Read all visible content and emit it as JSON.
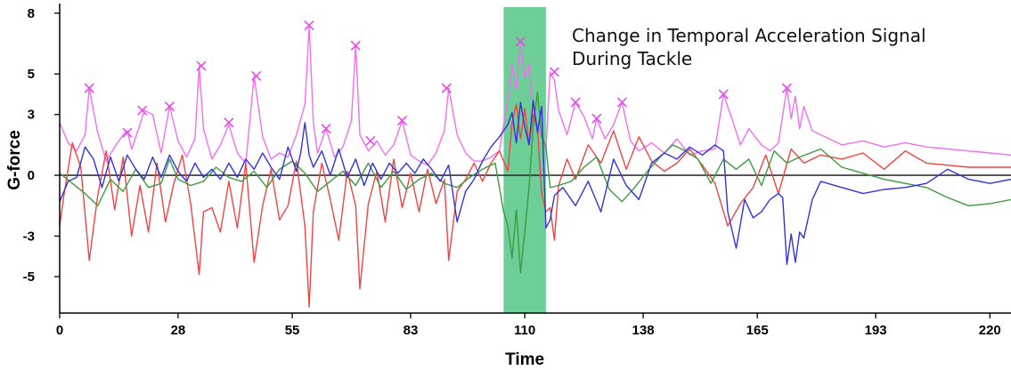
{
  "chart_data": {
    "type": "line",
    "title": "",
    "annotation": [
      "Change in Temporal Acceleration Signal",
      "During Tackle"
    ],
    "xlabel": "Time",
    "ylabel": "G-force",
    "xlim": [
      0,
      225
    ],
    "ylim": [
      -6.8,
      8.3
    ],
    "x_ticks": [
      0,
      28,
      55,
      83,
      110,
      138,
      165,
      193,
      220
    ],
    "y_ticks": [
      8,
      5,
      3,
      0,
      -3,
      -5
    ],
    "grid": false,
    "zero_line": true,
    "highlight": {
      "x_start": 105,
      "x_end": 115,
      "color": "#3cbf74"
    },
    "colors": {
      "magnitude": "#f26ff2",
      "red": "#f04444",
      "green": "#3e9a3e",
      "blue": "#3333dd",
      "markers": "#e84ae8",
      "highlight": "#3cbf74"
    },
    "peak_markers": [
      {
        "x": 7,
        "y": 4.3
      },
      {
        "x": 16,
        "y": 2.1
      },
      {
        "x": 19.5,
        "y": 3.2
      },
      {
        "x": 26,
        "y": 3.4
      },
      {
        "x": 33.5,
        "y": 5.4
      },
      {
        "x": 40,
        "y": 2.6
      },
      {
        "x": 46.5,
        "y": 4.9
      },
      {
        "x": 59,
        "y": 7.4
      },
      {
        "x": 63,
        "y": 2.3
      },
      {
        "x": 70,
        "y": 6.4
      },
      {
        "x": 73.5,
        "y": 1.7
      },
      {
        "x": 81,
        "y": 2.7
      },
      {
        "x": 91.5,
        "y": 4.3
      },
      {
        "x": 109,
        "y": 6.6
      },
      {
        "x": 117,
        "y": 5.1
      },
      {
        "x": 122,
        "y": 3.6
      },
      {
        "x": 127,
        "y": 2.8
      },
      {
        "x": 133,
        "y": 3.6
      },
      {
        "x": 157,
        "y": 4.0
      },
      {
        "x": 172,
        "y": 4.3
      }
    ],
    "series": [
      {
        "name": "",
        "color": "#f26ff2",
        "x": [
          0,
          2,
          4,
          6,
          7,
          9,
          11,
          13,
          15,
          16,
          17,
          19,
          20,
          22,
          24,
          26,
          28,
          30,
          32,
          33,
          34,
          36,
          38,
          40,
          42,
          44,
          46,
          48,
          50,
          52,
          54,
          56,
          58,
          59,
          60,
          61,
          63,
          65,
          67,
          69,
          70,
          71,
          73,
          75,
          77,
          79,
          81,
          83,
          85,
          87,
          89,
          91,
          92,
          94,
          96,
          98,
          100,
          102,
          104,
          106,
          107,
          108,
          109,
          110,
          111,
          112,
          113,
          114,
          115,
          116,
          117,
          118,
          120,
          122,
          124,
          126,
          127,
          129,
          131,
          133,
          135,
          137,
          140,
          143,
          146,
          149,
          152,
          155,
          157,
          159,
          161,
          163,
          166,
          168,
          170,
          172,
          173,
          174,
          175,
          176,
          178,
          181,
          185,
          190,
          195,
          200,
          205,
          210,
          215,
          220,
          225
        ],
        "y": [
          2.6,
          1.6,
          1.2,
          2.0,
          4.3,
          2.1,
          0.7,
          1.4,
          2.0,
          2.2,
          1.3,
          2.5,
          3.2,
          3.0,
          1.1,
          3.4,
          1.7,
          0.9,
          1.8,
          5.4,
          2.3,
          0.8,
          1.5,
          2.5,
          1.1,
          0.6,
          4.9,
          1.9,
          0.8,
          1.1,
          0.9,
          2.0,
          3.5,
          7.4,
          2.6,
          1.1,
          2.3,
          0.9,
          1.4,
          2.7,
          6.4,
          2.0,
          1.2,
          1.7,
          1.0,
          1.5,
          2.7,
          1.0,
          0.7,
          0.5,
          1.1,
          2.2,
          4.3,
          2.0,
          1.1,
          0.7,
          0.7,
          0.9,
          1.2,
          3.8,
          5.5,
          4.2,
          6.6,
          4.8,
          5.5,
          3.1,
          2.5,
          1.9,
          1.3,
          5.1,
          4.7,
          3.2,
          2.0,
          3.6,
          2.9,
          1.8,
          2.8,
          1.8,
          2.5,
          3.6,
          1.7,
          1.2,
          1.6,
          1.1,
          1.8,
          1.0,
          1.2,
          1.3,
          4.0,
          2.8,
          1.5,
          2.3,
          1.5,
          1.2,
          1.6,
          4.3,
          2.8,
          3.9,
          2.3,
          3.4,
          2.2,
          1.9,
          1.5,
          1.7,
          1.4,
          1.6,
          1.4,
          1.3,
          1.2,
          1.1,
          1.0
        ]
      },
      {
        "name": "",
        "color": "#f04444",
        "x": [
          0,
          1,
          3,
          5,
          7,
          9,
          11,
          13,
          15,
          17,
          19,
          21,
          23,
          25,
          27,
          29,
          31,
          33,
          34,
          36,
          38,
          40,
          42,
          44,
          46,
          48,
          50,
          52,
          54,
          56,
          58,
          59,
          60,
          62,
          64,
          66,
          68,
          70,
          71,
          73,
          75,
          77,
          79,
          81,
          83,
          85,
          87,
          89,
          91,
          92,
          94,
          96,
          98,
          100,
          102,
          104,
          106,
          107,
          108,
          109,
          110,
          111,
          112,
          113,
          114,
          115,
          116,
          117,
          118,
          120,
          122,
          125,
          128,
          131,
          134,
          137,
          140,
          143,
          146,
          149,
          152,
          155,
          158,
          161,
          164,
          167,
          170,
          173,
          176,
          180,
          185,
          190,
          195,
          200,
          205,
          210,
          215,
          220,
          225
        ],
        "y": [
          -2.5,
          -1.0,
          1.6,
          0.4,
          -4.2,
          -1.0,
          1.2,
          -1.7,
          0.9,
          -3.0,
          -0.5,
          -2.8,
          0.6,
          -2.3,
          -0.4,
          1.0,
          -1.4,
          -4.9,
          -1.8,
          -1.6,
          -2.8,
          -0.3,
          -2.6,
          0.6,
          -4.3,
          -1.5,
          0.3,
          -2.2,
          -1.5,
          0.7,
          -2.5,
          -6.5,
          -1.8,
          0.6,
          -1.2,
          -3.2,
          0.2,
          -1.5,
          -5.6,
          -1.4,
          0.2,
          -2.3,
          0.8,
          -1.6,
          0.1,
          -1.8,
          0.3,
          -1.4,
          -0.2,
          -4.2,
          -0.8,
          -0.2,
          0.6,
          -0.3,
          0.6,
          1.2,
          0.2,
          2.6,
          3.5,
          1.8,
          3.3,
          1.5,
          3.0,
          2.3,
          -0.9,
          -1.8,
          -1.6,
          -3.2,
          -0.5,
          0.8,
          -0.2,
          1.5,
          0.6,
          2.2,
          0.3,
          1.9,
          0.7,
          0.2,
          0.6,
          1.3,
          0.5,
          -0.4,
          -2.5,
          -1.4,
          -0.6,
          1.0,
          -0.9,
          1.3,
          0.6,
          1.0,
          0.8,
          1.1,
          0.3,
          1.2,
          0.6,
          0.5,
          0.4,
          0.4,
          0.4
        ]
      },
      {
        "name": "",
        "color": "#3e9a3e",
        "x": [
          0,
          3,
          6,
          9,
          12,
          15,
          18,
          21,
          24,
          26,
          28,
          31,
          34,
          37,
          40,
          43,
          46,
          49,
          52,
          55,
          58,
          61,
          64,
          67,
          70,
          73,
          76,
          79,
          82,
          85,
          88,
          91,
          94,
          97,
          100,
          103,
          105,
          106,
          107,
          108,
          109,
          110,
          111,
          112,
          113,
          114,
          115,
          116,
          118,
          121,
          124,
          127,
          130,
          133,
          136,
          139,
          142,
          145,
          148,
          151,
          154,
          157,
          160,
          163,
          166,
          169,
          172,
          175,
          180,
          185,
          190,
          195,
          200,
          205,
          210,
          215,
          220,
          225
        ],
        "y": [
          0.1,
          -0.4,
          -0.9,
          -1.5,
          -0.2,
          -0.8,
          0.3,
          -0.6,
          -0.4,
          0.8,
          -0.2,
          -0.5,
          -0.3,
          0.4,
          -0.1,
          -0.3,
          0.2,
          -0.6,
          0.3,
          0.7,
          0.1,
          -0.8,
          -0.3,
          0.2,
          -0.5,
          0.6,
          -0.6,
          0.2,
          -0.7,
          -0.2,
          0.1,
          -0.4,
          -0.6,
          -0.1,
          0.3,
          0.6,
          -1.8,
          -2.5,
          -4.1,
          -1.7,
          -4.8,
          -2.8,
          -0.6,
          2.4,
          4.1,
          1.9,
          1.4,
          -0.6,
          -0.5,
          -0.3,
          0.4,
          0.9,
          -0.7,
          -1.3,
          -0.6,
          0.2,
          0.9,
          1.5,
          1.2,
          0.8,
          -0.4,
          0.8,
          0.3,
          0.8,
          -0.5,
          1.2,
          0.6,
          0.9,
          1.3,
          0.4,
          0.1,
          -0.2,
          -0.4,
          -0.6,
          -1.1,
          -1.5,
          -1.4,
          -1.2
        ]
      },
      {
        "name": "",
        "color": "#3333dd",
        "x": [
          0,
          2,
          4,
          6,
          8,
          10,
          12,
          14,
          16,
          18,
          20,
          22,
          24,
          26,
          28,
          30,
          32,
          34,
          36,
          38,
          40,
          42,
          44,
          46,
          48,
          50,
          52,
          54,
          56,
          57,
          58,
          59,
          60,
          62,
          64,
          66,
          68,
          70,
          72,
          74,
          76,
          78,
          80,
          82,
          84,
          86,
          88,
          90,
          92,
          94,
          96,
          98,
          100,
          102,
          104,
          106,
          107,
          108,
          109,
          110,
          111,
          112,
          113,
          114,
          115,
          116,
          117,
          119,
          122,
          125,
          128,
          131,
          134,
          137,
          140,
          143,
          146,
          149,
          152,
          155,
          157,
          158,
          160,
          162,
          164,
          166,
          168,
          170,
          171,
          172,
          173,
          174,
          175,
          176,
          178,
          180,
          185,
          190,
          195,
          200,
          205,
          210,
          215,
          220,
          225
        ],
        "y": [
          -1.3,
          -0.3,
          -0.1,
          1.4,
          0.8,
          -0.6,
          0.9,
          -0.3,
          1.0,
          0.3,
          -0.2,
          0.9,
          -0.1,
          1.0,
          0.2,
          -0.3,
          0.6,
          -0.1,
          0.3,
          -0.2,
          0.6,
          -0.1,
          0.8,
          0.3,
          1.1,
          0.4,
          -0.2,
          1.4,
          0.2,
          1.1,
          2.6,
          1.0,
          0.4,
          1.2,
          0.0,
          1.3,
          -0.1,
          0.8,
          -0.5,
          0.6,
          -0.2,
          0.6,
          0.1,
          0.6,
          0.1,
          0.8,
          0.3,
          -0.3,
          0.5,
          -2.3,
          -0.8,
          -0.2,
          0.7,
          1.4,
          1.9,
          2.5,
          3.1,
          1.6,
          3.6,
          2.4,
          1.5,
          3.7,
          2.1,
          3.4,
          -2.6,
          -2.2,
          -1.0,
          -0.6,
          -1.5,
          -0.3,
          -1.8,
          0.8,
          -0.5,
          -1.2,
          0.6,
          1.1,
          0.8,
          1.4,
          1.0,
          1.5,
          1.2,
          -1.8,
          -3.6,
          -1.2,
          -2.1,
          -1.8,
          -1.2,
          -0.9,
          -1.1,
          -4.4,
          -2.9,
          -4.3,
          -2.8,
          -3.1,
          -1.2,
          -0.3,
          -0.6,
          -0.9,
          -0.7,
          -0.6,
          -0.4,
          0.3,
          -0.2,
          -0.4,
          -0.2
        ]
      }
    ]
  }
}
